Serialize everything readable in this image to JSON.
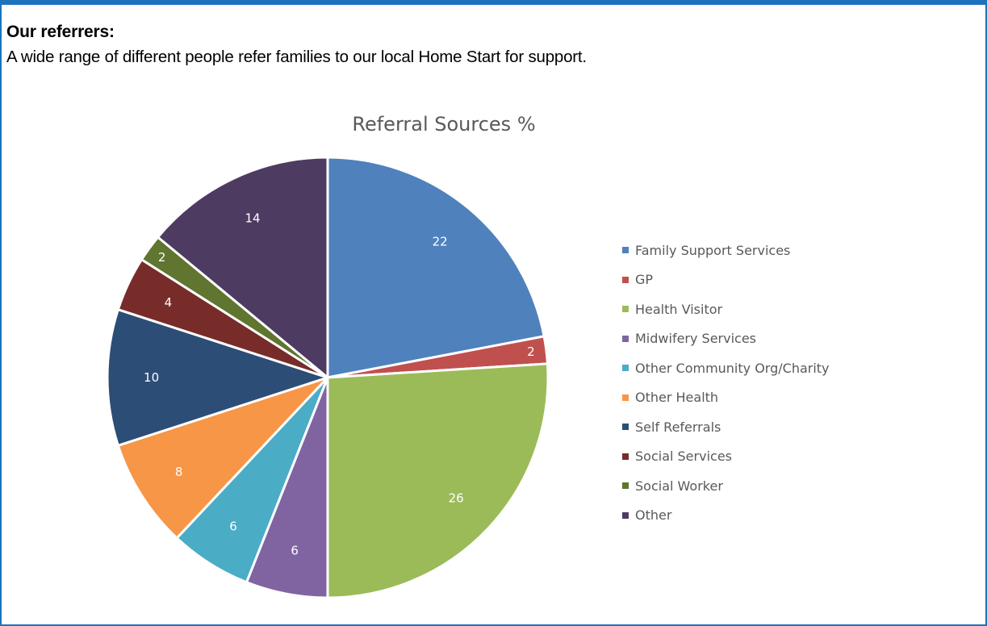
{
  "section": {
    "heading": "Our referrers:",
    "intro": "A wide range of different people refer families to our local Home Start for support."
  },
  "colors": {
    "frame_border": "#1e73be"
  },
  "chart_data": {
    "type": "pie",
    "title": "Referral Sources %",
    "legend_position": "right",
    "categories": [
      "Family Support Services",
      "GP",
      "Health Visitor",
      "Midwifery Services",
      "Other Community Org/Charity",
      "Other Health",
      "Self Referrals",
      "Social Services",
      "Social Worker",
      "Other"
    ],
    "values": [
      22,
      2,
      26,
      6,
      6,
      8,
      10,
      4,
      2,
      14
    ],
    "colors": [
      "#4f81bd",
      "#c0504d",
      "#9bbb59",
      "#8064a2",
      "#4bacc6",
      "#f79646",
      "#2c4d75",
      "#772c2a",
      "#5f7530",
      "#4d3b62"
    ]
  }
}
